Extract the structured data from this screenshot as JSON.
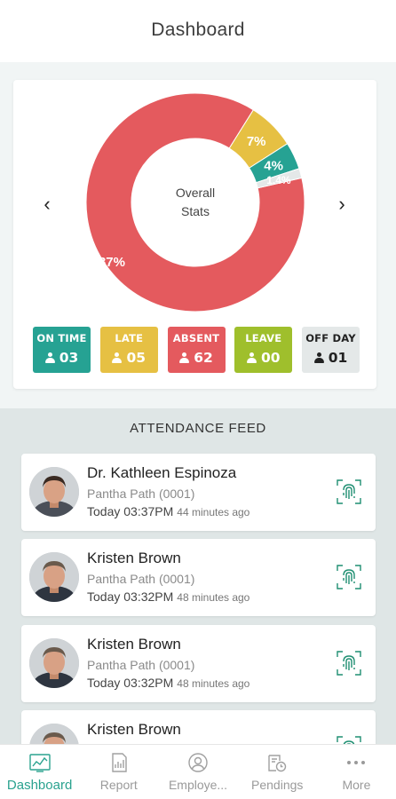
{
  "header": {
    "title": "Dashboard"
  },
  "stats": {
    "center_line1": "Overall",
    "center_line2": "Stats",
    "prev_arrow": "‹",
    "next_arrow": "›",
    "colors": {
      "absent": "#e45a5e",
      "late": "#e6c043",
      "on_time": "#26a293",
      "leave": "#9fbf2c",
      "off_day": "#e4e8e8"
    }
  },
  "chart_data": {
    "type": "pie",
    "center_text": "Overall Stats",
    "slices": [
      {
        "name": "ABSENT",
        "value": 87,
        "label": "87%",
        "color": "#e45a5e"
      },
      {
        "name": "LATE",
        "value": 7,
        "label": "7%",
        "color": "#e6c043"
      },
      {
        "name": "ON TIME",
        "value": 4,
        "label": "4%",
        "color": "#26a293"
      },
      {
        "name": "OFF DAY",
        "value": 1.4,
        "label": "1.4%",
        "color": "#e4e8e8"
      }
    ]
  },
  "badges": [
    {
      "label": "ON TIME",
      "count": "03",
      "color": "#26a293",
      "icon": "person-icon"
    },
    {
      "label": "LATE",
      "count": "05",
      "color": "#e6c043",
      "icon": "person-icon"
    },
    {
      "label": "ABSENT",
      "count": "62",
      "color": "#e45a5e",
      "icon": "person-icon"
    },
    {
      "label": "LEAVE",
      "count": "00",
      "color": "#9fbf2c",
      "icon": "person-icon"
    },
    {
      "label": "OFF DAY",
      "count": "01",
      "color": "#e4e8e8",
      "icon": "person-icon"
    }
  ],
  "feed": {
    "title": "ATTENDANCE FEED",
    "items": [
      {
        "name": "Dr. Kathleen Espinoza",
        "location": "Pantha Path (0001)",
        "time": "Today 03:37PM",
        "ago": "44 minutes ago",
        "icon": "fingerprint-icon"
      },
      {
        "name": "Kristen Brown",
        "location": "Pantha Path (0001)",
        "time": "Today 03:32PM",
        "ago": "48 minutes ago",
        "icon": "fingerprint-icon"
      },
      {
        "name": "Kristen Brown",
        "location": "Pantha Path (0001)",
        "time": "Today 03:32PM",
        "ago": "48 minutes ago",
        "icon": "fingerprint-icon"
      },
      {
        "name": "Kristen Brown",
        "location": "",
        "time": "",
        "ago": "",
        "icon": "fingerprint-icon"
      }
    ]
  },
  "nav": {
    "items": [
      {
        "label": "Dashboard",
        "icon": "dashboard-icon",
        "active": true
      },
      {
        "label": "Report",
        "icon": "report-icon",
        "active": false
      },
      {
        "label": "Employe...",
        "icon": "employee-icon",
        "active": false
      },
      {
        "label": "Pendings",
        "icon": "pendings-icon",
        "active": false
      },
      {
        "label": "More",
        "icon": "more-icon",
        "active": false
      }
    ],
    "active_color": "#2aa28f"
  }
}
